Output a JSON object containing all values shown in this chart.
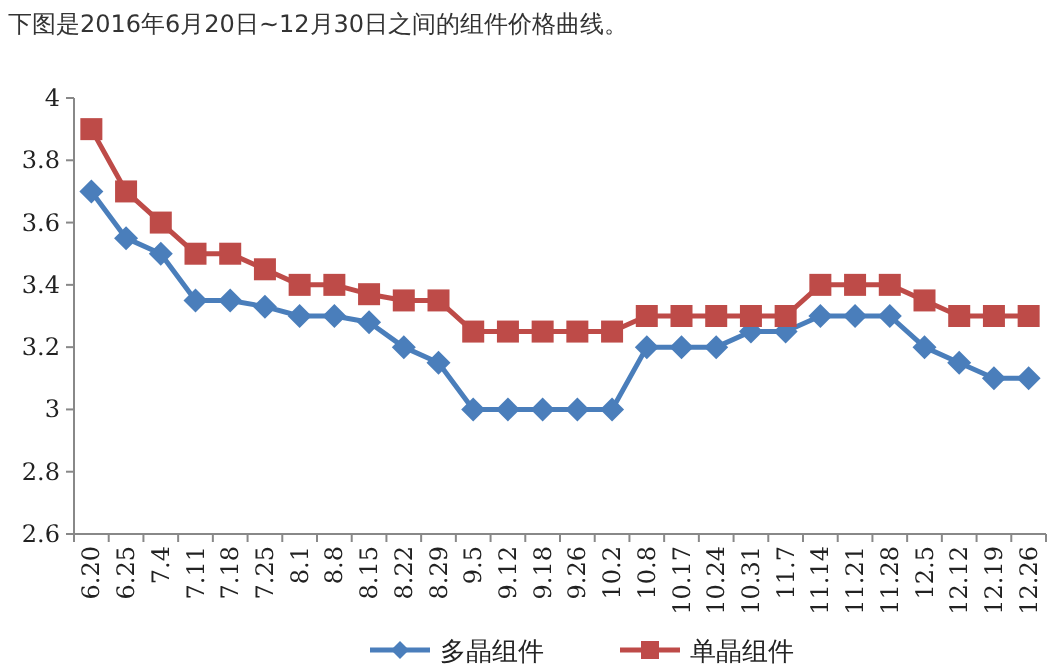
{
  "chart_data": {
    "type": "line",
    "title": "下图是2016年6月20日~12月30日之间的组件价格曲线。",
    "categories": [
      "6.20",
      "6.25",
      "7.4",
      "7.11",
      "7.18",
      "7.25",
      "8.1",
      "8.8",
      "8.15",
      "8.22",
      "8.29",
      "9.5",
      "9.12",
      "9.18",
      "9.26",
      "10.2",
      "10.8",
      "10.17",
      "10.24",
      "10.31",
      "11.7",
      "11.14",
      "11.21",
      "11.28",
      "12.5",
      "12.12",
      "12.19",
      "12.26"
    ],
    "series": [
      {
        "name": "多晶组件",
        "color": "#4a7ebb",
        "marker": "diamond",
        "values": [
          3.7,
          3.55,
          3.5,
          3.35,
          3.35,
          3.33,
          3.3,
          3.3,
          3.28,
          3.2,
          3.15,
          3.0,
          3.0,
          3.0,
          3.0,
          3.0,
          3.2,
          3.2,
          3.2,
          3.25,
          3.25,
          3.3,
          3.3,
          3.3,
          3.2,
          3.15,
          3.1,
          3.1
        ]
      },
      {
        "name": "单晶组件",
        "color": "#be4b48",
        "marker": "square",
        "values": [
          3.9,
          3.7,
          3.6,
          3.5,
          3.5,
          3.45,
          3.4,
          3.4,
          3.37,
          3.35,
          3.35,
          3.25,
          3.25,
          3.25,
          3.25,
          3.25,
          3.3,
          3.3,
          3.3,
          3.3,
          3.3,
          3.4,
          3.4,
          3.4,
          3.35,
          3.3,
          3.3,
          3.3
        ]
      }
    ],
    "ylim": [
      2.6,
      4
    ],
    "yticks": [
      2.6,
      2.8,
      3,
      3.2,
      3.4,
      3.6,
      3.8,
      4
    ],
    "legend": "bottom"
  }
}
